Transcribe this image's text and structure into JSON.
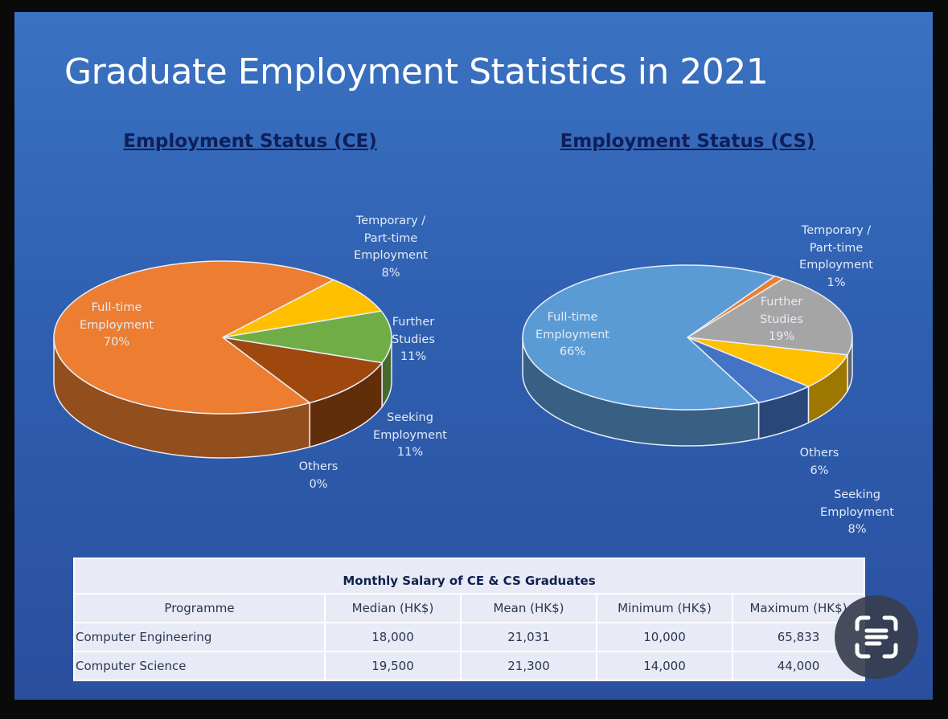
{
  "title": "Graduate Employment Statistics in 2021",
  "chart_data": [
    {
      "type": "pie",
      "title": "Employment Status (CE)",
      "slices": [
        {
          "label": "Temporary /\nPart-time\nEmployment",
          "value": 8,
          "value_label": "8%",
          "color": "#ffc000"
        },
        {
          "label": "Further\nStudies",
          "value": 11,
          "value_label": "11%",
          "color": "#70ad47"
        },
        {
          "label": "Seeking\nEmployment",
          "value": 11,
          "value_label": "11%",
          "color": "#9e480e"
        },
        {
          "label": "Others",
          "value": 0,
          "value_label": "0%",
          "color": "#636363"
        },
        {
          "label": "Full-time\nEmployment",
          "value": 70,
          "value_label": "70%",
          "color": "#ed7d31"
        }
      ]
    },
    {
      "type": "pie",
      "title": "Employment Status (CS)",
      "slices": [
        {
          "label": "Temporary /\nPart-time\nEmployment",
          "value": 1,
          "value_label": "1%",
          "color": "#ed7d31"
        },
        {
          "label": "Further\nStudies",
          "value": 19,
          "value_label": "19%",
          "color": "#a5a5a5"
        },
        {
          "label": "Seeking\nEmployment",
          "value": 8,
          "value_label": "8%",
          "color": "#ffc000"
        },
        {
          "label": "Others",
          "value": 6,
          "value_label": "6%",
          "color": "#4472c4"
        },
        {
          "label": "Full-time\nEmployment",
          "value": 66,
          "value_label": "66%",
          "color": "#5b9bd5"
        }
      ]
    }
  ],
  "table": {
    "caption": "Monthly Salary of CE & CS Graduates",
    "headers": [
      "Programme",
      "Median (HK$)",
      "Mean (HK$)",
      "Minimum (HK$)",
      "Maximum (HK$)"
    ],
    "rows": [
      [
        "Computer Engineering",
        "18,000",
        "21,031",
        "10,000",
        "65,833"
      ],
      [
        "Computer Science",
        "19,500",
        "21,300",
        "14,000",
        "44,000"
      ]
    ]
  },
  "scan_button": {
    "icon": "scan-text-icon"
  }
}
